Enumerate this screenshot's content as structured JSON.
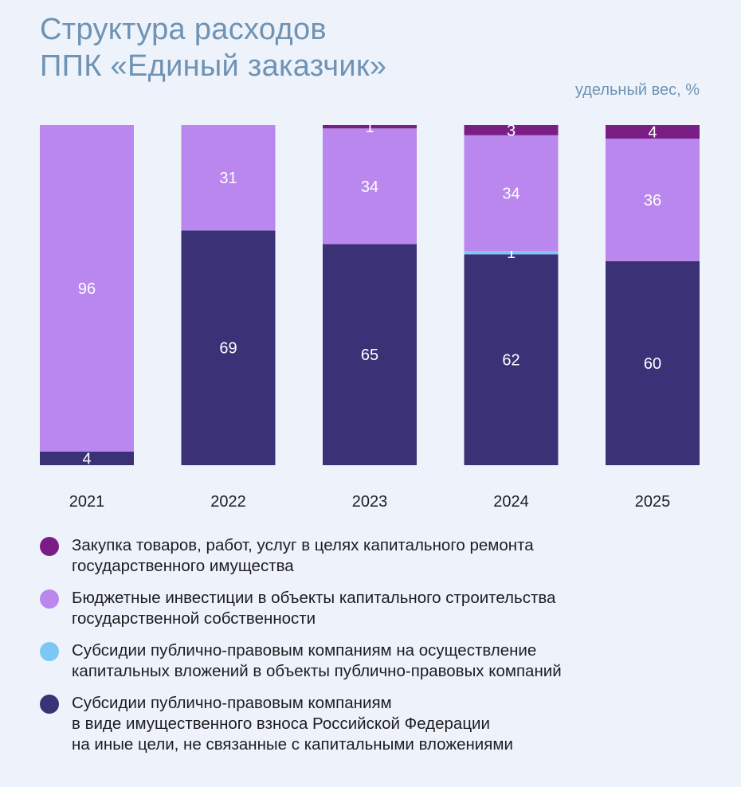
{
  "header": {
    "title_line1": "Структура расходов",
    "title_line2": "ППК «Единый заказчик»",
    "unit": "удельный вес, %"
  },
  "chart_data": {
    "type": "bar",
    "stacked": true,
    "categories": [
      "2021",
      "2022",
      "2023",
      "2024",
      "2025"
    ],
    "ylim": [
      0,
      100
    ],
    "grid": false,
    "legend_position": "bottom",
    "series": [
      {
        "name": "Субсидии публично-правовым компаниям\nв виде имущественного взноса Российской Федерации\nна иные цели, не связанные с капитальными вложениями",
        "color": "#3b3177",
        "values": [
          4,
          69,
          65,
          62,
          60
        ],
        "labels": [
          "4",
          "69",
          "65",
          "62",
          "60"
        ]
      },
      {
        "name": "Субсидии публично-правовым компаниям на осуществление\nкапитальных вложений в объекты публично-правовых компаний",
        "color": "#7cc8f2",
        "values": [
          0,
          0,
          0,
          1,
          0
        ],
        "labels": [
          "",
          "",
          "",
          "1",
          ""
        ]
      },
      {
        "name": "Бюджетные инвестиции в объекты капитального строительства\nгосударственной собственности",
        "color": "#b987ee",
        "values": [
          96,
          31,
          34,
          34,
          36
        ],
        "labels": [
          "96",
          "31",
          "34",
          "34",
          "36"
        ]
      },
      {
        "name": "Закупка товаров, работ, услуг в целях капитального ремонта\nгосударственного имущества",
        "color": "#7a1e86",
        "values": [
          0,
          0,
          1,
          3,
          4
        ],
        "labels": [
          "",
          "",
          "1",
          "3",
          "4"
        ]
      }
    ],
    "legend_order": [
      3,
      2,
      1,
      0
    ]
  },
  "legend": {
    "items": [
      {
        "label": "Закупка товаров, работ, услуг в целях капитального ремонта\nгосударственного имущества",
        "color": "#7a1e86"
      },
      {
        "label": "Бюджетные инвестиции в объекты капитального строительства\nгосударственной собственности",
        "color": "#b987ee"
      },
      {
        "label": "Субсидии публично-правовым компаниям на осуществление\nкапитальных вложений в объекты публично-правовых компаний",
        "color": "#7cc8f2"
      },
      {
        "label": "Субсидии публично-правовым компаниям\nв виде имущественного взноса Российской Федерации\nна иные цели, не связанные с капитальными вложениями",
        "color": "#3b3177"
      }
    ]
  }
}
